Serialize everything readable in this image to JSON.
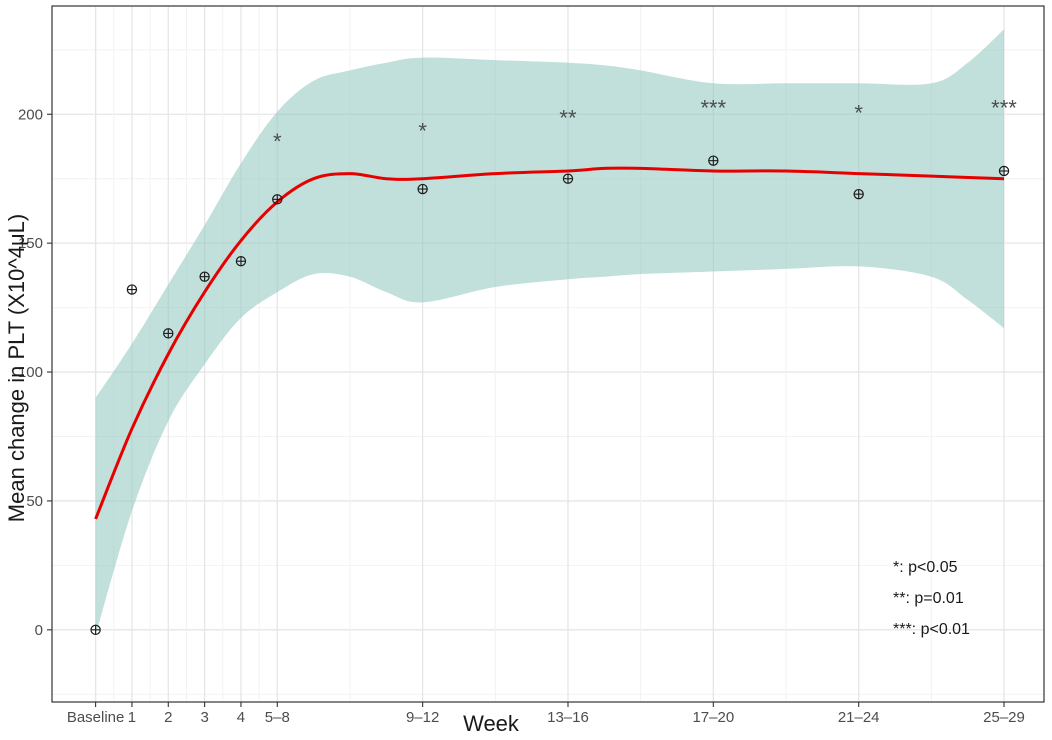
{
  "chart_data": {
    "type": "scatter",
    "title": "",
    "xlabel": "Week",
    "ylabel": "Mean change in PLT (X10^4μL)",
    "ylim": [
      -28,
      242
    ],
    "y_ticks": [
      0,
      50,
      100,
      150,
      200
    ],
    "grid": true,
    "x_ticks": [
      {
        "label": "Baseline",
        "x": 0
      },
      {
        "label": "1",
        "x": 1
      },
      {
        "label": "2",
        "x": 2
      },
      {
        "label": "3",
        "x": 3
      },
      {
        "label": "4",
        "x": 4
      },
      {
        "label": "5–8",
        "x": 5
      },
      {
        "label": "9–12",
        "x": 9
      },
      {
        "label": "13–16",
        "x": 13
      },
      {
        "label": "17–20",
        "x": 17
      },
      {
        "label": "21–24",
        "x": 21
      },
      {
        "label": "25–29",
        "x": 25
      }
    ],
    "points": [
      {
        "x": 0,
        "y": 0
      },
      {
        "x": 1,
        "y": 132
      },
      {
        "x": 2,
        "y": 115
      },
      {
        "x": 3,
        "y": 137
      },
      {
        "x": 4,
        "y": 143
      },
      {
        "x": 5,
        "y": 167
      },
      {
        "x": 9,
        "y": 171
      },
      {
        "x": 13,
        "y": 175
      },
      {
        "x": 17,
        "y": 182
      },
      {
        "x": 21,
        "y": 169
      },
      {
        "x": 25,
        "y": 178
      }
    ],
    "smooth_line": {
      "color": "#e60000",
      "x": [
        0,
        1,
        2,
        3,
        4,
        5,
        6,
        7,
        8,
        9,
        11,
        13,
        14,
        15,
        17,
        19,
        21,
        23,
        25
      ],
      "y": [
        43,
        78,
        107,
        131,
        151,
        166,
        175,
        177,
        175,
        175,
        177,
        178,
        179,
        179,
        178,
        178,
        177,
        176,
        175
      ]
    },
    "confidence_band": {
      "color": "#8ec6bd",
      "x": [
        0,
        1,
        2,
        3,
        4,
        5,
        6,
        7,
        8,
        9,
        11,
        13,
        14,
        15,
        17,
        19,
        21,
        23,
        24,
        25
      ],
      "upper": [
        90,
        111,
        134,
        157,
        181,
        201,
        213,
        217,
        220,
        222,
        221,
        220,
        219,
        217,
        212,
        212,
        212,
        212,
        220,
        233
      ],
      "lower": [
        -2,
        46,
        81,
        103,
        121,
        131,
        138,
        137,
        131,
        127,
        133,
        136,
        137,
        138,
        139,
        140,
        141,
        137,
        128,
        117
      ]
    },
    "significance_markers": [
      {
        "x": 5,
        "y": 192,
        "label": "*"
      },
      {
        "x": 9,
        "y": 196,
        "label": "*"
      },
      {
        "x": 13,
        "y": 201,
        "label": "**"
      },
      {
        "x": 17,
        "y": 205,
        "label": "***"
      },
      {
        "x": 21,
        "y": 203,
        "label": "*"
      },
      {
        "x": 25,
        "y": 205,
        "label": "***"
      }
    ],
    "annotation_lines": [
      "*: p<0.05",
      "**: p=0.01",
      "***: p<0.01"
    ]
  }
}
